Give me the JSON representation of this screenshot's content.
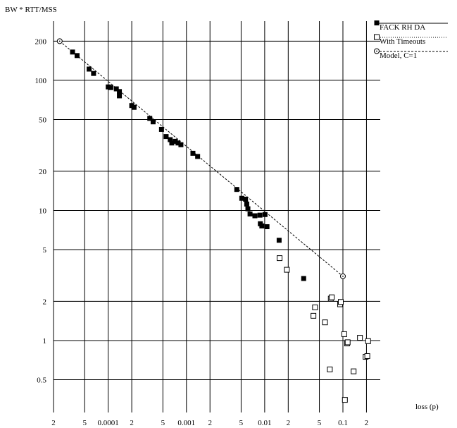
{
  "chart_data": {
    "type": "scatter",
    "title": "",
    "ylabel": "BW * RTT/MSS",
    "xlabel": "loss (p)",
    "x_scale": "log",
    "y_scale": "log",
    "xlim": [
      2e-05,
      0.3
    ],
    "ylim": [
      0.28,
      285
    ],
    "grid": true,
    "legend_position": "top-right",
    "x_ticks": [
      {
        "value": 2e-05,
        "label": "2"
      },
      {
        "value": 5e-05,
        "label": "5"
      },
      {
        "value": 0.0001,
        "label": "0.0001"
      },
      {
        "value": 0.0002,
        "label": "2"
      },
      {
        "value": 0.0005,
        "label": "5"
      },
      {
        "value": 0.001,
        "label": "0.001"
      },
      {
        "value": 0.002,
        "label": "2"
      },
      {
        "value": 0.005,
        "label": "5"
      },
      {
        "value": 0.01,
        "label": "0.01"
      },
      {
        "value": 0.02,
        "label": "2"
      },
      {
        "value": 0.05,
        "label": "5"
      },
      {
        "value": 0.1,
        "label": "0.1"
      },
      {
        "value": 0.2,
        "label": "2"
      }
    ],
    "y_ticks": [
      {
        "value": 200,
        "label": "200"
      },
      {
        "value": 100,
        "label": "100"
      },
      {
        "value": 50,
        "label": "50"
      },
      {
        "value": 20,
        "label": "20"
      },
      {
        "value": 10,
        "label": "10"
      },
      {
        "value": 5,
        "label": "5"
      },
      {
        "value": 2,
        "label": "2"
      },
      {
        "value": 1,
        "label": "1"
      },
      {
        "value": 0.5,
        "label": "0.5"
      }
    ],
    "series": [
      {
        "name": "FACK RH DA",
        "marker": "filled-square",
        "color": "#000000",
        "points": [
          [
            3.5e-05,
            165
          ],
          [
            4e-05,
            155
          ],
          [
            5.7e-05,
            122
          ],
          [
            6.5e-05,
            113
          ],
          [
            0.0001,
            89
          ],
          [
            0.000108,
            88
          ],
          [
            0.000127,
            86
          ],
          [
            0.000139,
            82
          ],
          [
            0.000139,
            76
          ],
          [
            0.0002,
            64
          ],
          [
            0.000214,
            62
          ],
          [
            0.00034,
            51
          ],
          [
            0.000375,
            48
          ],
          [
            0.00048,
            42
          ],
          [
            0.00055,
            37
          ],
          [
            0.00062,
            35
          ],
          [
            0.00065,
            33
          ],
          [
            0.00072,
            34
          ],
          [
            0.00078,
            33
          ],
          [
            0.00085,
            32
          ],
          [
            0.00121,
            27.5
          ],
          [
            0.00139,
            26
          ],
          [
            0.0044,
            14.5
          ],
          [
            0.0051,
            12.4
          ],
          [
            0.0057,
            12.2
          ],
          [
            0.0059,
            11.2
          ],
          [
            0.0061,
            10.3
          ],
          [
            0.0065,
            9.4
          ],
          [
            0.0075,
            9.1
          ],
          [
            0.0087,
            9.2
          ],
          [
            0.0088,
            7.9
          ],
          [
            0.0092,
            7.6
          ],
          [
            0.0101,
            9.3
          ],
          [
            0.0107,
            7.5
          ],
          [
            0.0153,
            5.9
          ],
          [
            0.0315,
            3.0
          ]
        ]
      },
      {
        "name": "With Timeouts",
        "marker": "open-square",
        "color": "#000000",
        "points": [
          [
            0.0155,
            4.3
          ],
          [
            0.0192,
            3.5
          ],
          [
            0.042,
            1.55
          ],
          [
            0.044,
            1.8
          ],
          [
            0.059,
            1.38
          ],
          [
            0.068,
            0.6
          ],
          [
            0.07,
            2.1
          ],
          [
            0.072,
            2.15
          ],
          [
            0.092,
            1.9
          ],
          [
            0.094,
            1.98
          ],
          [
            0.104,
            1.12
          ],
          [
            0.106,
            0.35
          ],
          [
            0.113,
            0.95
          ],
          [
            0.115,
            0.97
          ],
          [
            0.137,
            0.58
          ],
          [
            0.165,
            1.05
          ],
          [
            0.195,
            0.75
          ],
          [
            0.205,
            0.76
          ],
          [
            0.21,
            0.99
          ]
        ]
      },
      {
        "name": "Model, C=1",
        "marker": "open-circle-dashed-line",
        "color": "#000000",
        "points": [
          [
            2.4e-05,
            200
          ],
          [
            0.1,
            3.12
          ]
        ]
      }
    ]
  }
}
